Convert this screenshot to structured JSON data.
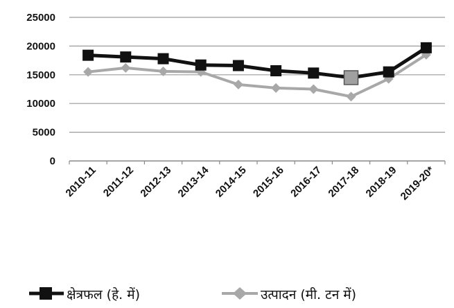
{
  "chart_data": {
    "type": "line",
    "title": "",
    "xlabel": "",
    "ylabel": "",
    "categories": [
      "2010-11",
      "2011-12",
      "2012-13",
      "2013-14",
      "2014-15",
      "2015-16",
      "2016-17",
      "2017-18",
      "2018-19",
      "2019-20*"
    ],
    "ylim": [
      0,
      25000
    ],
    "yticks": [
      0,
      5000,
      10000,
      15000,
      20000,
      25000
    ],
    "grid": true,
    "legend_position": "bottom",
    "series": [
      {
        "name": "क्षेत्रफल (हे. में)",
        "color": "#111111",
        "marker": "square",
        "values": [
          18400,
          18100,
          17800,
          16700,
          16600,
          15700,
          15300,
          14500,
          15500,
          19700
        ]
      },
      {
        "name": "उत्पादन (मी. टन में)",
        "color": "#a8a8a8",
        "marker": "diamond",
        "values": [
          15500,
          16200,
          15600,
          15500,
          13300,
          12700,
          12500,
          11200,
          14300,
          18500
        ]
      }
    ],
    "highlight": {
      "category": "2017-18",
      "color": "#a0a0a0"
    }
  }
}
